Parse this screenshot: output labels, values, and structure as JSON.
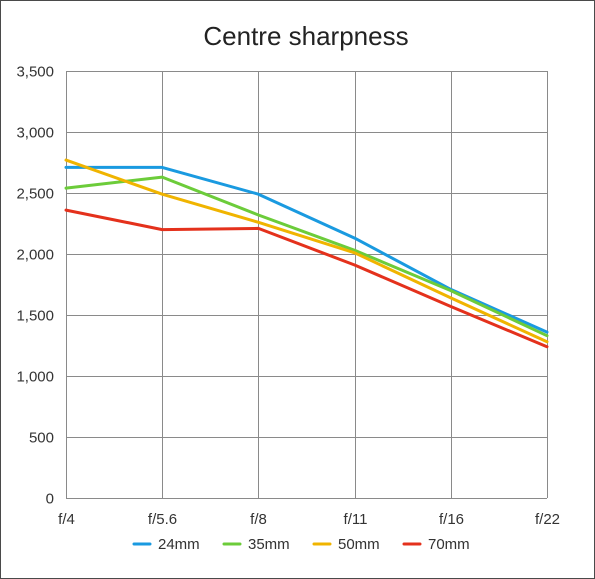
{
  "chart_data": {
    "type": "line",
    "title": "Centre sharpness",
    "categories": [
      "f/4",
      "f/5.6",
      "f/8",
      "f/11",
      "f/16",
      "f/22"
    ],
    "ylim": [
      0,
      3500
    ],
    "yticks": [
      {
        "value": 0,
        "label": "0"
      },
      {
        "value": 500,
        "label": "500"
      },
      {
        "value": 1000,
        "label": "1,000"
      },
      {
        "value": 1500,
        "label": "1,500"
      },
      {
        "value": 2000,
        "label": "2,000"
      },
      {
        "value": 2500,
        "label": "2,500"
      },
      {
        "value": 3000,
        "label": "3,000"
      },
      {
        "value": 3500,
        "label": "3,500"
      }
    ],
    "grid": true,
    "legend_position": "bottom",
    "series": [
      {
        "name": "24mm",
        "color": "#1a9ae0",
        "values": [
          2710,
          2710,
          2490,
          2130,
          1710,
          1360
        ]
      },
      {
        "name": "35mm",
        "color": "#6ccc3a",
        "values": [
          2540,
          2630,
          2320,
          2030,
          1700,
          1330
        ]
      },
      {
        "name": "50mm",
        "color": "#f0b400",
        "values": [
          2770,
          2490,
          2260,
          2010,
          1640,
          1280
        ]
      },
      {
        "name": "70mm",
        "color": "#e4311c",
        "values": [
          2360,
          2200,
          2210,
          1910,
          1570,
          1240
        ]
      }
    ]
  }
}
